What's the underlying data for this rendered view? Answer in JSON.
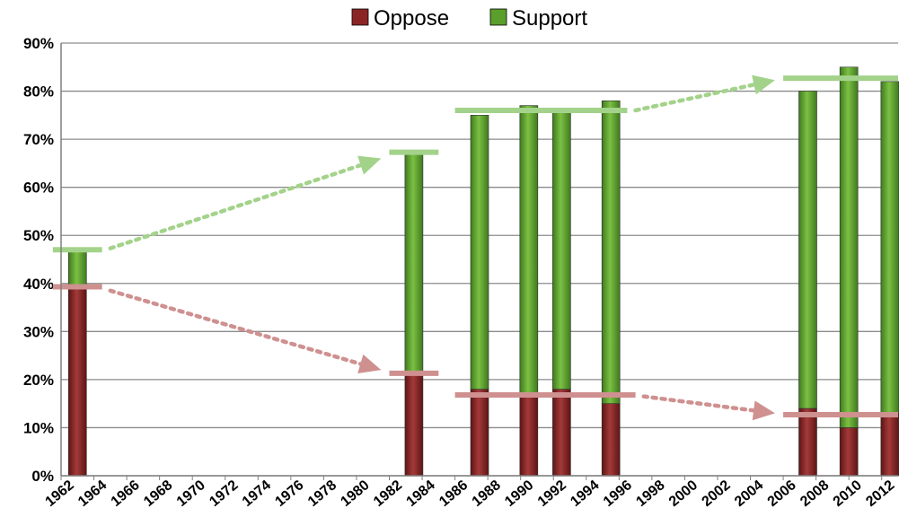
{
  "chart_data": {
    "type": "bar",
    "stacked": true,
    "title": "",
    "xlabel": "",
    "ylabel": "",
    "ylim": [
      0,
      90
    ],
    "y_ticks": [
      "0%",
      "10%",
      "20%",
      "30%",
      "40%",
      "50%",
      "60%",
      "70%",
      "80%",
      "90%"
    ],
    "x_ticks": [
      "1962",
      "1964",
      "1966",
      "1968",
      "1970",
      "1972",
      "1974",
      "1976",
      "1978",
      "1980",
      "1982",
      "1984",
      "1986",
      "1988",
      "1990",
      "1992",
      "1994",
      "1996",
      "1998",
      "2000",
      "2002",
      "2004",
      "2006",
      "2008",
      "2010",
      "2012"
    ],
    "x_range": [
      1962,
      2013
    ],
    "grid": true,
    "legend_position": "top-center",
    "x": [
      1963,
      1983.5,
      1987.5,
      1990.5,
      1992.5,
      1995.5,
      2007.5,
      2010,
      2012.5
    ],
    "series": [
      {
        "name": "Oppose",
        "color": "#8b2525",
        "values": [
          39,
          21,
          18,
          17,
          18,
          15,
          14,
          10,
          13
        ]
      },
      {
        "name": "Support",
        "color": "#5a9e2b",
        "values": [
          8,
          46,
          57,
          60,
          58,
          63,
          66,
          75,
          69
        ]
      }
    ],
    "trend_annotations": {
      "support": {
        "color": "#a3d38a",
        "levels": [
          {
            "x_from": 1961.5,
            "x_to": 1964.5,
            "value": 47
          },
          {
            "x_from": 1982,
            "x_to": 1985,
            "value": 67.3
          },
          {
            "x_from": 1986,
            "x_to": 1996.5,
            "value": 76
          },
          {
            "x_from": 2006,
            "x_to": 2013,
            "value": 82.7
          }
        ],
        "arrows": [
          {
            "from_x": 1965,
            "from_y": 47.3,
            "to_x": 1981.5,
            "to_y": 66
          },
          {
            "from_x": 1997,
            "from_y": 76,
            "to_x": 2005.5,
            "to_y": 82.3
          }
        ]
      },
      "oppose": {
        "color": "#cf9090",
        "levels": [
          {
            "x_from": 1961.5,
            "x_to": 1964.5,
            "value": 39.3
          },
          {
            "x_from": 1982,
            "x_to": 1985,
            "value": 21.3
          },
          {
            "x_from": 1986,
            "x_to": 1997,
            "value": 16.8
          },
          {
            "x_from": 2006,
            "x_to": 2013,
            "value": 12.7
          }
        ],
        "arrows": [
          {
            "from_x": 1965,
            "from_y": 38.5,
            "to_x": 1981.5,
            "to_y": 22
          },
          {
            "from_x": 1997.5,
            "from_y": 16.5,
            "to_x": 2005.5,
            "to_y": 13
          }
        ]
      }
    }
  }
}
